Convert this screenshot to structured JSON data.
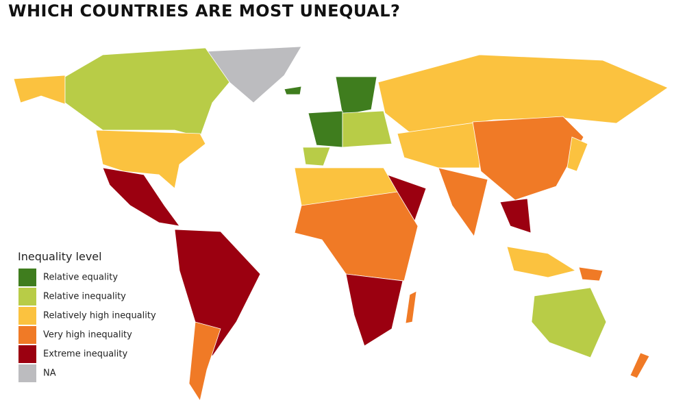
{
  "title": "WHICH COUNTRIES ARE MOST UNEQUAL?",
  "legend": {
    "title": "Inequality level",
    "items": [
      {
        "label": "Relative equality",
        "color": "#3f7d1e"
      },
      {
        "label": "Relative inequality",
        "color": "#b8cc47"
      },
      {
        "label": "Relatively high inequality",
        "color": "#fbc23f"
      },
      {
        "label": "Very high inequality",
        "color": "#f07a26"
      },
      {
        "label": "Extreme inequality",
        "color": "#9b0010"
      },
      {
        "label": "NA",
        "color": "#bcbcbf"
      }
    ]
  }
}
